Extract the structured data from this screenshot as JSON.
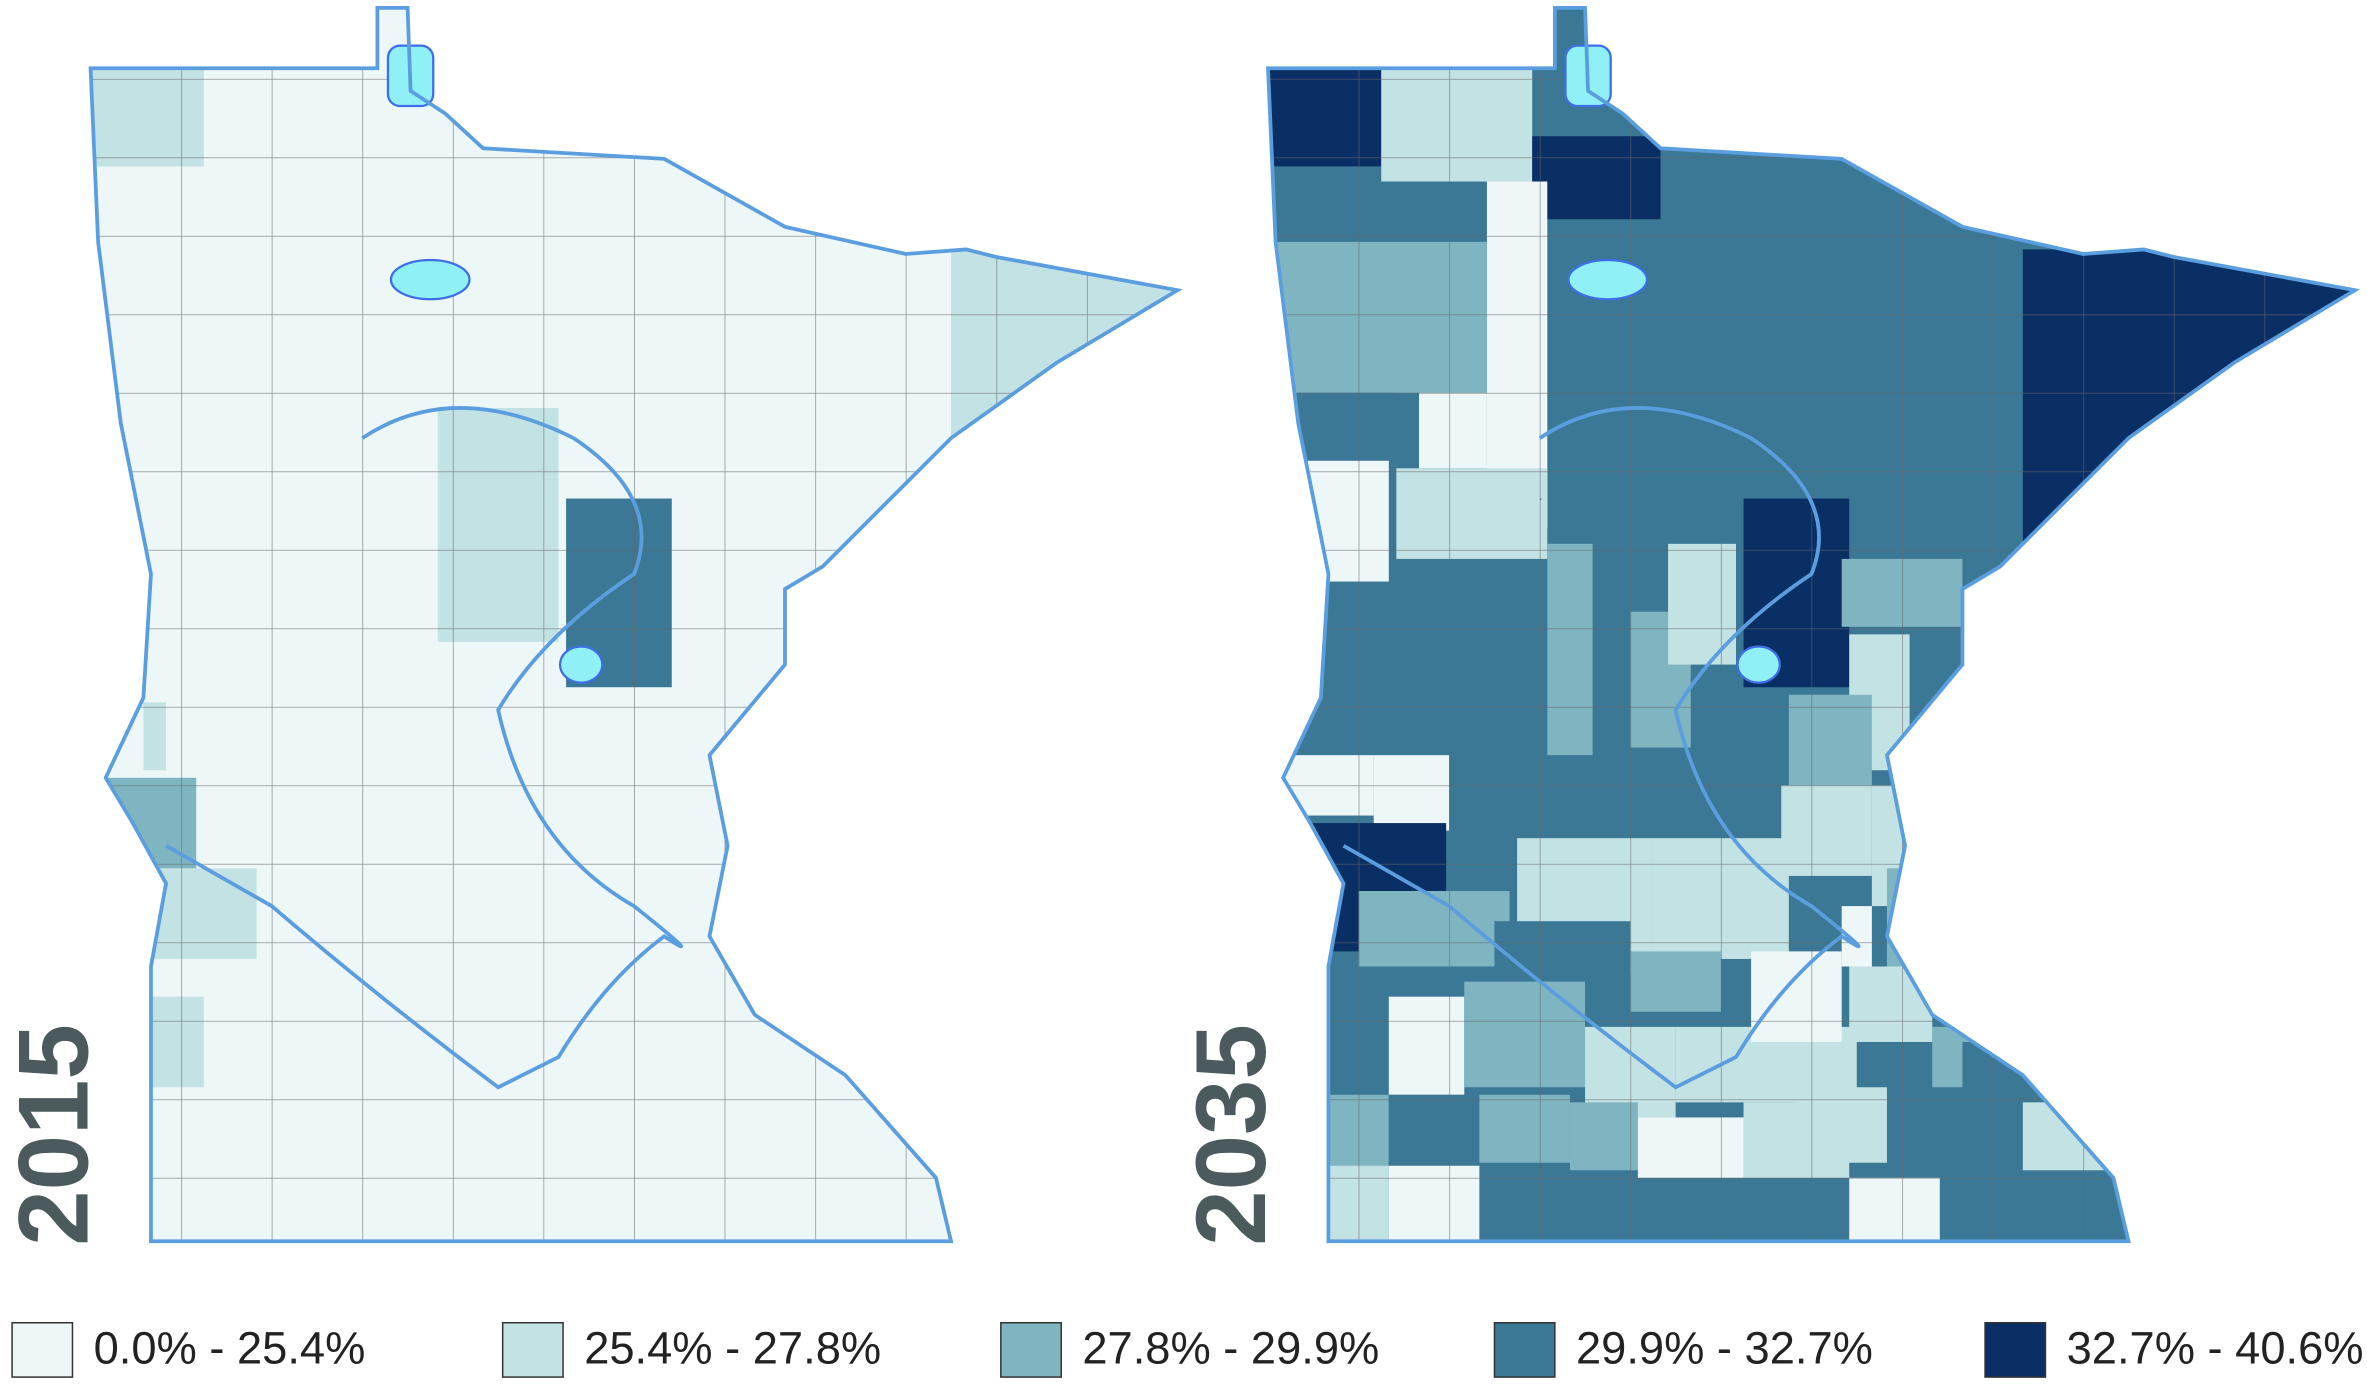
{
  "maps": [
    {
      "label": "2015"
    },
    {
      "label": "2035"
    }
  ],
  "legend": [
    {
      "label": "0.0% - 25.4%",
      "color": "#eef7f8"
    },
    {
      "label": "25.4% - 27.8%",
      "color": "#c3e2e4"
    },
    {
      "label": "27.8% - 29.9%",
      "color": "#7fb5c1"
    },
    {
      "label": "29.9% - 32.7%",
      "color": "#3a7896"
    },
    {
      "label": "32.7% - 40.6%",
      "color": "#0a2f65"
    }
  ]
}
